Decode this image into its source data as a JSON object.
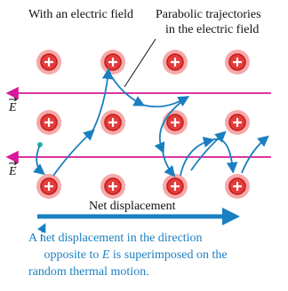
{
  "title": "With an electric field",
  "annotation": [
    "Parabolic trajectories",
    "in the electric field"
  ],
  "field_label": "E",
  "net_label": "Net displacement",
  "caption": {
    "line1": "A net displacement in the direction",
    "line2_start": "opposite to ",
    "line2_symbol": "E",
    "line2_end": " is superimposed on the",
    "line3": "random thermal motion."
  }
}
